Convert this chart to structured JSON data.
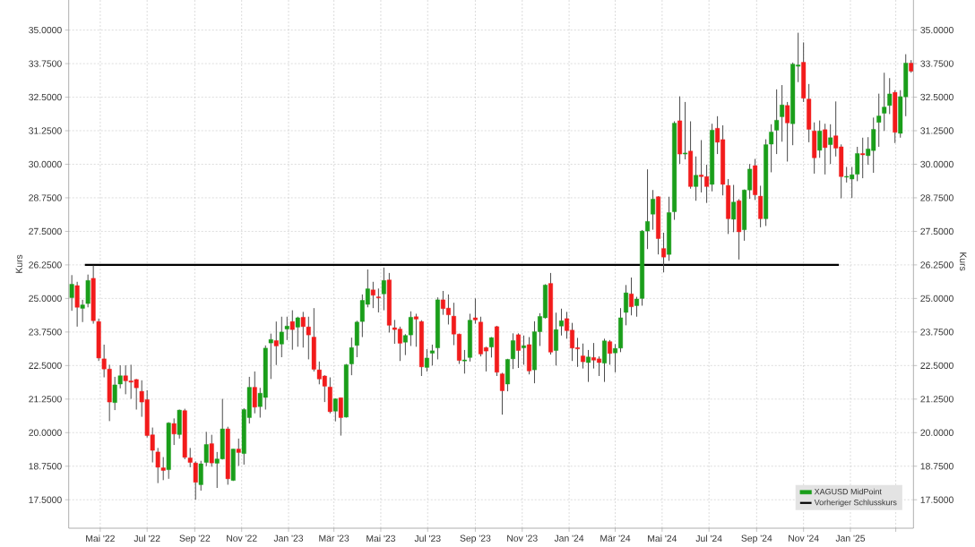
{
  "chart_data": {
    "type": "candlestick",
    "xlim": [
      "2022-03-21",
      "2025-03-24"
    ],
    "xticks": [
      {
        "value": "2022-05-01",
        "label": "Mai '22"
      },
      {
        "value": "2022-07-01",
        "label": "Jul '22"
      },
      {
        "value": "2022-09-01",
        "label": "Sep '22"
      },
      {
        "value": "2022-11-01",
        "label": "Nov '22"
      },
      {
        "value": "2023-01-01",
        "label": "Jan '23"
      },
      {
        "value": "2023-03-01",
        "label": "Mär '23"
      },
      {
        "value": "2023-05-01",
        "label": "Mai '23"
      },
      {
        "value": "2023-07-01",
        "label": "Jul '23"
      },
      {
        "value": "2023-09-01",
        "label": "Sep '23"
      },
      {
        "value": "2023-11-01",
        "label": "Nov '23"
      },
      {
        "value": "2024-01-01",
        "label": "Jan '24"
      },
      {
        "value": "2024-03-01",
        "label": "Mär '24"
      },
      {
        "value": "2024-05-01",
        "label": "Mai '24"
      },
      {
        "value": "2024-07-01",
        "label": "Jul '24"
      },
      {
        "value": "2024-09-01",
        "label": "Sep '24"
      },
      {
        "value": "2024-11-01",
        "label": "Nov '24"
      },
      {
        "value": "2025-01-01",
        "label": "Jan '25"
      },
      {
        "value": "2025-03-01",
        "label": null
      }
    ],
    "ylim": [
      16.44,
      36.12
    ],
    "yticks": [
      {
        "value": 17.5,
        "label": "17.5000"
      },
      {
        "value": 18.75,
        "label": "18.7500"
      },
      {
        "value": 20,
        "label": "20.0000"
      },
      {
        "value": 21.25,
        "label": "21.2500"
      },
      {
        "value": 22.5,
        "label": "22.5000"
      },
      {
        "value": 23.75,
        "label": "23.7500"
      },
      {
        "value": 25,
        "label": "25.0000"
      },
      {
        "value": 26.25,
        "label": "26.2500"
      },
      {
        "value": 27.5,
        "label": "27.5000"
      },
      {
        "value": 28.75,
        "label": "28.7500"
      },
      {
        "value": 30,
        "label": "30.0000"
      },
      {
        "value": 31.25,
        "label": "31.2500"
      },
      {
        "value": 32.5,
        "label": "32.5000"
      },
      {
        "value": 33.75,
        "label": "33.7500"
      },
      {
        "value": 35,
        "label": "35.0000"
      }
    ],
    "y2lim": [
      16.44,
      36.12
    ],
    "y2ticks": [
      {
        "value": 17.5,
        "label": "17.5000"
      },
      {
        "value": 18.75,
        "label": "18.7500"
      },
      {
        "value": 20,
        "label": "20.0000"
      },
      {
        "value": 21.25,
        "label": "21.2500"
      },
      {
        "value": 22.5,
        "label": "22.5000"
      },
      {
        "value": 23.75,
        "label": "23.7500"
      },
      {
        "value": 25,
        "label": "25.0000"
      },
      {
        "value": 26.25,
        "label": "26.2500"
      },
      {
        "value": 27.5,
        "label": "27.5000"
      },
      {
        "value": 28.75,
        "label": "28.7500"
      },
      {
        "value": 30,
        "label": "30.0000"
      },
      {
        "value": 31.25,
        "label": "31.2500"
      },
      {
        "value": 32.5,
        "label": "32.5000"
      },
      {
        "value": 33.75,
        "label": "33.7500"
      },
      {
        "value": 35,
        "label": "35.0000"
      }
    ],
    "ylabel": "Kurs",
    "y2label": "Kurs",
    "grid": true,
    "legend": "bottom right",
    "series": [
      {
        "name": "XAGUSD MidPoint",
        "x": [
          "2022-03-25",
          "2022-04-01",
          "2022-04-08",
          "2022-04-15",
          "2022-04-22",
          "2022-04-29",
          "2022-05-06",
          "2022-05-13",
          "2022-05-20",
          "2022-05-27",
          "2022-06-03",
          "2022-06-10",
          "2022-06-17",
          "2022-06-24",
          "2022-07-01",
          "2022-07-08",
          "2022-07-15",
          "2022-07-22",
          "2022-07-29",
          "2022-08-05",
          "2022-08-12",
          "2022-08-19",
          "2022-08-26",
          "2022-09-02",
          "2022-09-09",
          "2022-09-16",
          "2022-09-23",
          "2022-09-30",
          "2022-10-07",
          "2022-10-14",
          "2022-10-21",
          "2022-10-28",
          "2022-11-04",
          "2022-11-11",
          "2022-11-18",
          "2022-11-25",
          "2022-12-02",
          "2022-12-09",
          "2022-12-16",
          "2022-12-23",
          "2022-12-30",
          "2023-01-06",
          "2023-01-13",
          "2023-01-20",
          "2023-01-27",
          "2023-02-03",
          "2023-02-10",
          "2023-02-17",
          "2023-02-24",
          "2023-03-03",
          "2023-03-10",
          "2023-03-17",
          "2023-03-24",
          "2023-03-31",
          "2023-04-07",
          "2023-04-14",
          "2023-04-21",
          "2023-04-28",
          "2023-05-05",
          "2023-05-12",
          "2023-05-19",
          "2023-05-26",
          "2023-06-02",
          "2023-06-09",
          "2023-06-16",
          "2023-06-23",
          "2023-06-30",
          "2023-07-07",
          "2023-07-14",
          "2023-07-21",
          "2023-07-28",
          "2023-08-04",
          "2023-08-11",
          "2023-08-18",
          "2023-08-25",
          "2023-09-01",
          "2023-09-08",
          "2023-09-15",
          "2023-09-22",
          "2023-09-29",
          "2023-10-06",
          "2023-10-13",
          "2023-10-20",
          "2023-10-27",
          "2023-11-03",
          "2023-11-10",
          "2023-11-17",
          "2023-11-24",
          "2023-12-01",
          "2023-12-08",
          "2023-12-15",
          "2023-12-22",
          "2023-12-29",
          "2024-01-05",
          "2024-01-12",
          "2024-01-19",
          "2024-01-26",
          "2024-02-02",
          "2024-02-09",
          "2024-02-16",
          "2024-02-23",
          "2024-03-01",
          "2024-03-08",
          "2024-03-15",
          "2024-03-22",
          "2024-03-29",
          "2024-04-05",
          "2024-04-12",
          "2024-04-19",
          "2024-04-26",
          "2024-05-03",
          "2024-05-10",
          "2024-05-17",
          "2024-05-24",
          "2024-05-31",
          "2024-06-07",
          "2024-06-14",
          "2024-06-21",
          "2024-06-28",
          "2024-07-05",
          "2024-07-12",
          "2024-07-19",
          "2024-07-26",
          "2024-08-02",
          "2024-08-09",
          "2024-08-16",
          "2024-08-23",
          "2024-08-30",
          "2024-09-06",
          "2024-09-13",
          "2024-09-20",
          "2024-09-27",
          "2024-10-04",
          "2024-10-11",
          "2024-10-18",
          "2024-10-25",
          "2024-11-01",
          "2024-11-08",
          "2024-11-15",
          "2024-11-22",
          "2024-11-29",
          "2024-12-06",
          "2024-12-13",
          "2024-12-20",
          "2024-12-27",
          "2025-01-03",
          "2025-01-10",
          "2025-01-17",
          "2025-01-24",
          "2025-01-31",
          "2025-02-07",
          "2025-02-14",
          "2025-02-21",
          "2025-02-28",
          "2025-03-07",
          "2025-03-14",
          "2025-03-21"
        ],
        "ohlc": [
          [
            25.03,
            25.87,
            24.54,
            25.53
          ],
          [
            25.48,
            25.62,
            23.95,
            24.67
          ],
          [
            24.63,
            24.95,
            24.12,
            24.76
          ],
          [
            24.81,
            25.89,
            24.67,
            25.67
          ],
          [
            25.75,
            26.23,
            24.06,
            24.17
          ],
          [
            24.14,
            24.25,
            22.67,
            22.78
          ],
          [
            22.75,
            23.28,
            22.06,
            22.37
          ],
          [
            22.37,
            22.53,
            20.43,
            21.14
          ],
          [
            21.12,
            22.08,
            20.84,
            21.78
          ],
          [
            21.81,
            22.51,
            21.65,
            22.12
          ],
          [
            22.12,
            22.51,
            21.43,
            21.93
          ],
          [
            21.93,
            22.53,
            21.26,
            21.88
          ],
          [
            21.98,
            22.0,
            20.86,
            21.67
          ],
          [
            21.54,
            21.95,
            20.59,
            21.14
          ],
          [
            21.23,
            21.58,
            19.82,
            19.89
          ],
          [
            19.92,
            20.19,
            18.89,
            19.34
          ],
          [
            19.28,
            19.43,
            18.12,
            18.71
          ],
          [
            18.69,
            19.09,
            18.23,
            18.59
          ],
          [
            18.62,
            20.39,
            18.28,
            20.36
          ],
          [
            20.34,
            20.53,
            19.54,
            19.95
          ],
          [
            19.93,
            20.86,
            19.78,
            20.84
          ],
          [
            20.82,
            20.89,
            19.01,
            19.08
          ],
          [
            19.06,
            19.43,
            18.71,
            18.89
          ],
          [
            18.87,
            18.93,
            17.5,
            18.15
          ],
          [
            18.06,
            18.95,
            17.84,
            18.84
          ],
          [
            18.89,
            20.03,
            18.75,
            19.56
          ],
          [
            19.59,
            19.92,
            18.73,
            18.87
          ],
          [
            18.86,
            19.28,
            17.94,
            19.02
          ],
          [
            19.02,
            21.26,
            19.0,
            20.14
          ],
          [
            20.14,
            20.22,
            18.06,
            18.28
          ],
          [
            18.22,
            19.39,
            18.2,
            19.39
          ],
          [
            19.39,
            19.78,
            18.76,
            19.26
          ],
          [
            19.22,
            20.91,
            18.81,
            20.86
          ],
          [
            20.56,
            22.08,
            20.34,
            21.69
          ],
          [
            21.69,
            22.28,
            20.72,
            20.95
          ],
          [
            20.97,
            21.67,
            20.56,
            21.47
          ],
          [
            21.31,
            23.25,
            20.86,
            23.15
          ],
          [
            23.34,
            23.69,
            22.0,
            23.47
          ],
          [
            23.43,
            24.14,
            22.52,
            23.23
          ],
          [
            23.3,
            24.32,
            22.81,
            23.75
          ],
          [
            23.86,
            24.32,
            23.45,
            23.97
          ],
          [
            24.14,
            24.56,
            23.09,
            23.84
          ],
          [
            23.93,
            24.32,
            23.2,
            24.28
          ],
          [
            24.3,
            24.5,
            23.17,
            23.95
          ],
          [
            23.94,
            24.32,
            22.73,
            23.64
          ],
          [
            23.56,
            24.64,
            22.28,
            22.36
          ],
          [
            22.34,
            22.65,
            21.8,
            22.0
          ],
          [
            22.11,
            22.14,
            21.14,
            21.73
          ],
          [
            21.7,
            22.06,
            20.72,
            20.78
          ],
          [
            20.8,
            21.28,
            20.42,
            21.26
          ],
          [
            21.3,
            21.3,
            19.89,
            20.56
          ],
          [
            20.58,
            22.56,
            20.56,
            22.53
          ],
          [
            22.56,
            23.54,
            22.14,
            23.17
          ],
          [
            23.25,
            24.17,
            22.81,
            24.12
          ],
          [
            24.14,
            25.15,
            23.56,
            24.93
          ],
          [
            24.78,
            26.08,
            24.67,
            25.36
          ],
          [
            25.32,
            25.62,
            24.64,
            25.12
          ],
          [
            25.06,
            25.37,
            24.48,
            25.02
          ],
          [
            25.17,
            26.15,
            24.56,
            25.67
          ],
          [
            25.69,
            25.95,
            23.73,
            24.0
          ],
          [
            23.91,
            24.2,
            23.31,
            23.84
          ],
          [
            23.86,
            23.95,
            22.67,
            23.33
          ],
          [
            23.37,
            23.67,
            22.89,
            23.62
          ],
          [
            23.64,
            24.52,
            23.23,
            24.3
          ],
          [
            24.32,
            24.43,
            23.2,
            24.23
          ],
          [
            24.14,
            24.19,
            22.11,
            22.45
          ],
          [
            22.43,
            23.11,
            22.28,
            22.78
          ],
          [
            22.96,
            23.28,
            22.5,
            23.05
          ],
          [
            23.16,
            25.04,
            22.73,
            24.95
          ],
          [
            24.95,
            25.28,
            24.39,
            24.62
          ],
          [
            24.64,
            25.15,
            24.03,
            24.39
          ],
          [
            24.34,
            24.84,
            23.26,
            23.67
          ],
          [
            23.67,
            23.69,
            22.56,
            22.69
          ],
          [
            22.67,
            23.08,
            22.2,
            22.71
          ],
          [
            22.8,
            24.43,
            22.65,
            24.19
          ],
          [
            24.28,
            25.0,
            24.06,
            24.2
          ],
          [
            24.12,
            24.32,
            22.84,
            22.93
          ],
          [
            23.17,
            23.2,
            22.28,
            23.04
          ],
          [
            23.19,
            23.56,
            22.8,
            23.54
          ],
          [
            23.95,
            23.98,
            22.11,
            22.25
          ],
          [
            22.19,
            22.23,
            20.67,
            21.56
          ],
          [
            21.81,
            22.75,
            21.54,
            22.73
          ],
          [
            22.75,
            23.7,
            22.37,
            23.43
          ],
          [
            23.65,
            23.7,
            22.41,
            23.06
          ],
          [
            23.16,
            23.62,
            22.53,
            23.24
          ],
          [
            23.28,
            23.56,
            22.17,
            22.3
          ],
          [
            22.34,
            24.15,
            21.84,
            23.76
          ],
          [
            23.76,
            24.45,
            23.23,
            24.33
          ],
          [
            24.28,
            25.53,
            24.25,
            25.5
          ],
          [
            25.56,
            25.95,
            22.91,
            23.0
          ],
          [
            23.06,
            24.47,
            22.5,
            23.84
          ],
          [
            23.97,
            24.62,
            23.62,
            24.17
          ],
          [
            24.25,
            24.5,
            23.5,
            23.8
          ],
          [
            23.82,
            24.09,
            22.67,
            23.15
          ],
          [
            23.17,
            23.53,
            22.45,
            23.12
          ],
          [
            22.86,
            23.32,
            22.39,
            22.64
          ],
          [
            22.61,
            23.08,
            21.89,
            22.82
          ],
          [
            22.8,
            23.34,
            22.39,
            22.7
          ],
          [
            22.75,
            22.84,
            22.11,
            22.61
          ],
          [
            22.59,
            23.5,
            21.89,
            23.42
          ],
          [
            23.39,
            23.45,
            22.53,
            22.95
          ],
          [
            22.97,
            23.3,
            22.25,
            23.14
          ],
          [
            23.15,
            24.64,
            23.0,
            24.28
          ],
          [
            24.48,
            25.5,
            24.0,
            25.21
          ],
          [
            25.17,
            25.78,
            24.37,
            24.69
          ],
          [
            24.73,
            25.06,
            24.32,
            24.98
          ],
          [
            25.0,
            27.55,
            24.73,
            27.51
          ],
          [
            27.51,
            29.81,
            26.84,
            27.87
          ],
          [
            28.14,
            29.04,
            27.56,
            28.7
          ],
          [
            28.79,
            28.81,
            26.64,
            27.23
          ],
          [
            26.86,
            27.45,
            25.97,
            26.54
          ],
          [
            26.64,
            28.79,
            26.4,
            28.2
          ],
          [
            28.23,
            31.6,
            27.93,
            31.53
          ],
          [
            31.62,
            32.53,
            30.01,
            30.38
          ],
          [
            30.38,
            32.32,
            30.18,
            30.42
          ],
          [
            30.49,
            31.6,
            29.09,
            29.17
          ],
          [
            29.17,
            30.29,
            28.64,
            29.59
          ],
          [
            29.6,
            30.9,
            28.95,
            29.54
          ],
          [
            29.54,
            29.98,
            28.56,
            29.17
          ],
          [
            29.25,
            31.51,
            28.99,
            31.27
          ],
          [
            31.34,
            31.79,
            30.38,
            30.82
          ],
          [
            30.92,
            31.45,
            28.84,
            29.25
          ],
          [
            29.21,
            29.45,
            27.4,
            27.97
          ],
          [
            27.95,
            29.23,
            27.47,
            28.59
          ],
          [
            28.64,
            28.7,
            26.45,
            27.48
          ],
          [
            27.56,
            29.06,
            27.15,
            29.04
          ],
          [
            29.04,
            30.01,
            28.71,
            29.82
          ],
          [
            29.95,
            30.2,
            28.67,
            28.86
          ],
          [
            28.81,
            29.2,
            27.65,
            27.97
          ],
          [
            27.97,
            30.93,
            27.7,
            30.73
          ],
          [
            30.75,
            31.49,
            29.7,
            31.2
          ],
          [
            31.27,
            32.79,
            30.38,
            31.64
          ],
          [
            31.77,
            32.95,
            30.84,
            32.21
          ],
          [
            32.19,
            32.32,
            30.1,
            31.54
          ],
          [
            31.51,
            33.79,
            30.71,
            33.73
          ],
          [
            33.65,
            34.9,
            33.06,
            33.7
          ],
          [
            33.8,
            34.54,
            32.32,
            32.46
          ],
          [
            32.43,
            32.99,
            30.82,
            31.3
          ],
          [
            31.24,
            31.56,
            29.65,
            30.24
          ],
          [
            30.52,
            31.63,
            30.24,
            31.24
          ],
          [
            31.29,
            31.51,
            29.62,
            30.62
          ],
          [
            30.73,
            31.49,
            30.01,
            30.99
          ],
          [
            31.06,
            32.34,
            30.29,
            30.6
          ],
          [
            30.65,
            30.74,
            28.73,
            29.54
          ],
          [
            29.52,
            29.9,
            29.32,
            29.55
          ],
          [
            29.45,
            29.9,
            28.74,
            29.61
          ],
          [
            29.63,
            30.65,
            29.37,
            30.4
          ],
          [
            30.4,
            30.99,
            29.48,
            30.35
          ],
          [
            30.32,
            31.01,
            29.98,
            30.57
          ],
          [
            30.51,
            31.74,
            29.68,
            31.3
          ],
          [
            31.56,
            32.63,
            30.65,
            31.8
          ],
          [
            31.9,
            33.41,
            31.24,
            32.13
          ],
          [
            32.19,
            33.21,
            31.87,
            32.62
          ],
          [
            32.68,
            32.76,
            30.79,
            31.19
          ],
          [
            31.15,
            32.76,
            30.99,
            32.52
          ],
          [
            32.51,
            34.1,
            31.79,
            33.77
          ],
          [
            33.77,
            33.88,
            33.41,
            33.47
          ]
        ],
        "colors": [
          "#1a9e1a",
          "#f21b1b",
          "#1a9e1a",
          "#1a9e1a",
          "#f21b1b",
          "#f21b1b",
          "#f21b1b",
          "#f21b1b",
          "#1a9e1a",
          "#1a9e1a",
          "#f21b1b",
          "#f21b1b",
          "#f21b1b",
          "#f21b1b",
          "#f21b1b",
          "#f21b1b",
          "#f21b1b",
          "#f21b1b",
          "#1a9e1a",
          "#f21b1b",
          "#1a9e1a",
          "#f21b1b",
          "#f21b1b",
          "#f21b1b",
          "#1a9e1a",
          "#1a9e1a",
          "#f21b1b",
          "#1a9e1a",
          "#1a9e1a",
          "#f21b1b",
          "#1a9e1a",
          "#f21b1b",
          "#1a9e1a",
          "#1a9e1a",
          "#f21b1b",
          "#1a9e1a",
          "#1a9e1a",
          "#1a9e1a",
          "#f21b1b",
          "#1a9e1a",
          "#1a9e1a",
          "#f21b1b",
          "#1a9e1a",
          "#f21b1b",
          "#f21b1b",
          "#f21b1b",
          "#f21b1b",
          "#f21b1b",
          "#f21b1b",
          "#1a9e1a",
          "#f21b1b",
          "#1a9e1a",
          "#1a9e1a",
          "#1a9e1a",
          "#1a9e1a",
          "#1a9e1a",
          "#f21b1b",
          "#f21b1b",
          "#1a9e1a",
          "#f21b1b",
          "#f21b1b",
          "#f21b1b",
          "#1a9e1a",
          "#1a9e1a",
          "#f21b1b",
          "#f21b1b",
          "#1a9e1a",
          "#1a9e1a",
          "#1a9e1a",
          "#f21b1b",
          "#f21b1b",
          "#f21b1b",
          "#f21b1b",
          "#1a9e1a",
          "#1a9e1a",
          "#f21b1b",
          "#f21b1b",
          "#f21b1b",
          "#1a9e1a",
          "#f21b1b",
          "#f21b1b",
          "#1a9e1a",
          "#1a9e1a",
          "#f21b1b",
          "#1a9e1a",
          "#f21b1b",
          "#1a9e1a",
          "#1a9e1a",
          "#1a9e1a",
          "#f21b1b",
          "#1a9e1a",
          "#1a9e1a",
          "#f21b1b",
          "#f21b1b",
          "#f21b1b",
          "#f21b1b",
          "#1a9e1a",
          "#f21b1b",
          "#f21b1b",
          "#1a9e1a",
          "#f21b1b",
          "#1a9e1a",
          "#1a9e1a",
          "#1a9e1a",
          "#f21b1b",
          "#1a9e1a",
          "#1a9e1a",
          "#1a9e1a",
          "#1a9e1a",
          "#f21b1b",
          "#f21b1b",
          "#1a9e1a",
          "#1a9e1a",
          "#f21b1b",
          "#1a9e1a",
          "#f21b1b",
          "#1a9e1a",
          "#f21b1b",
          "#f21b1b",
          "#1a9e1a",
          "#f21b1b",
          "#f21b1b",
          "#f21b1b",
          "#1a9e1a",
          "#f21b1b",
          "#1a9e1a",
          "#1a9e1a",
          "#f21b1b",
          "#f21b1b",
          "#1a9e1a",
          "#1a9e1a",
          "#1a9e1a",
          "#1a9e1a",
          "#f21b1b",
          "#1a9e1a",
          "#1a9e1a",
          "#f21b1b",
          "#f21b1b",
          "#f21b1b",
          "#1a9e1a",
          "#f21b1b",
          "#1a9e1a",
          "#f21b1b",
          "#f21b1b",
          "#1a9e1a",
          "#1a9e1a",
          "#1a9e1a",
          "#f21b1b",
          "#1a9e1a",
          "#1a9e1a",
          "#1a9e1a",
          "#1a9e1a",
          "#1a9e1a",
          "#f21b1b",
          "#1a9e1a",
          "#1a9e1a",
          "#f21b1b"
        ]
      },
      {
        "name": "Vorheriger Schlusskurs",
        "type": "line",
        "color": "#000000",
        "x": [
          "2022-04-11",
          "2024-12-17"
        ],
        "values": [
          26.25,
          26.25
        ]
      }
    ]
  }
}
